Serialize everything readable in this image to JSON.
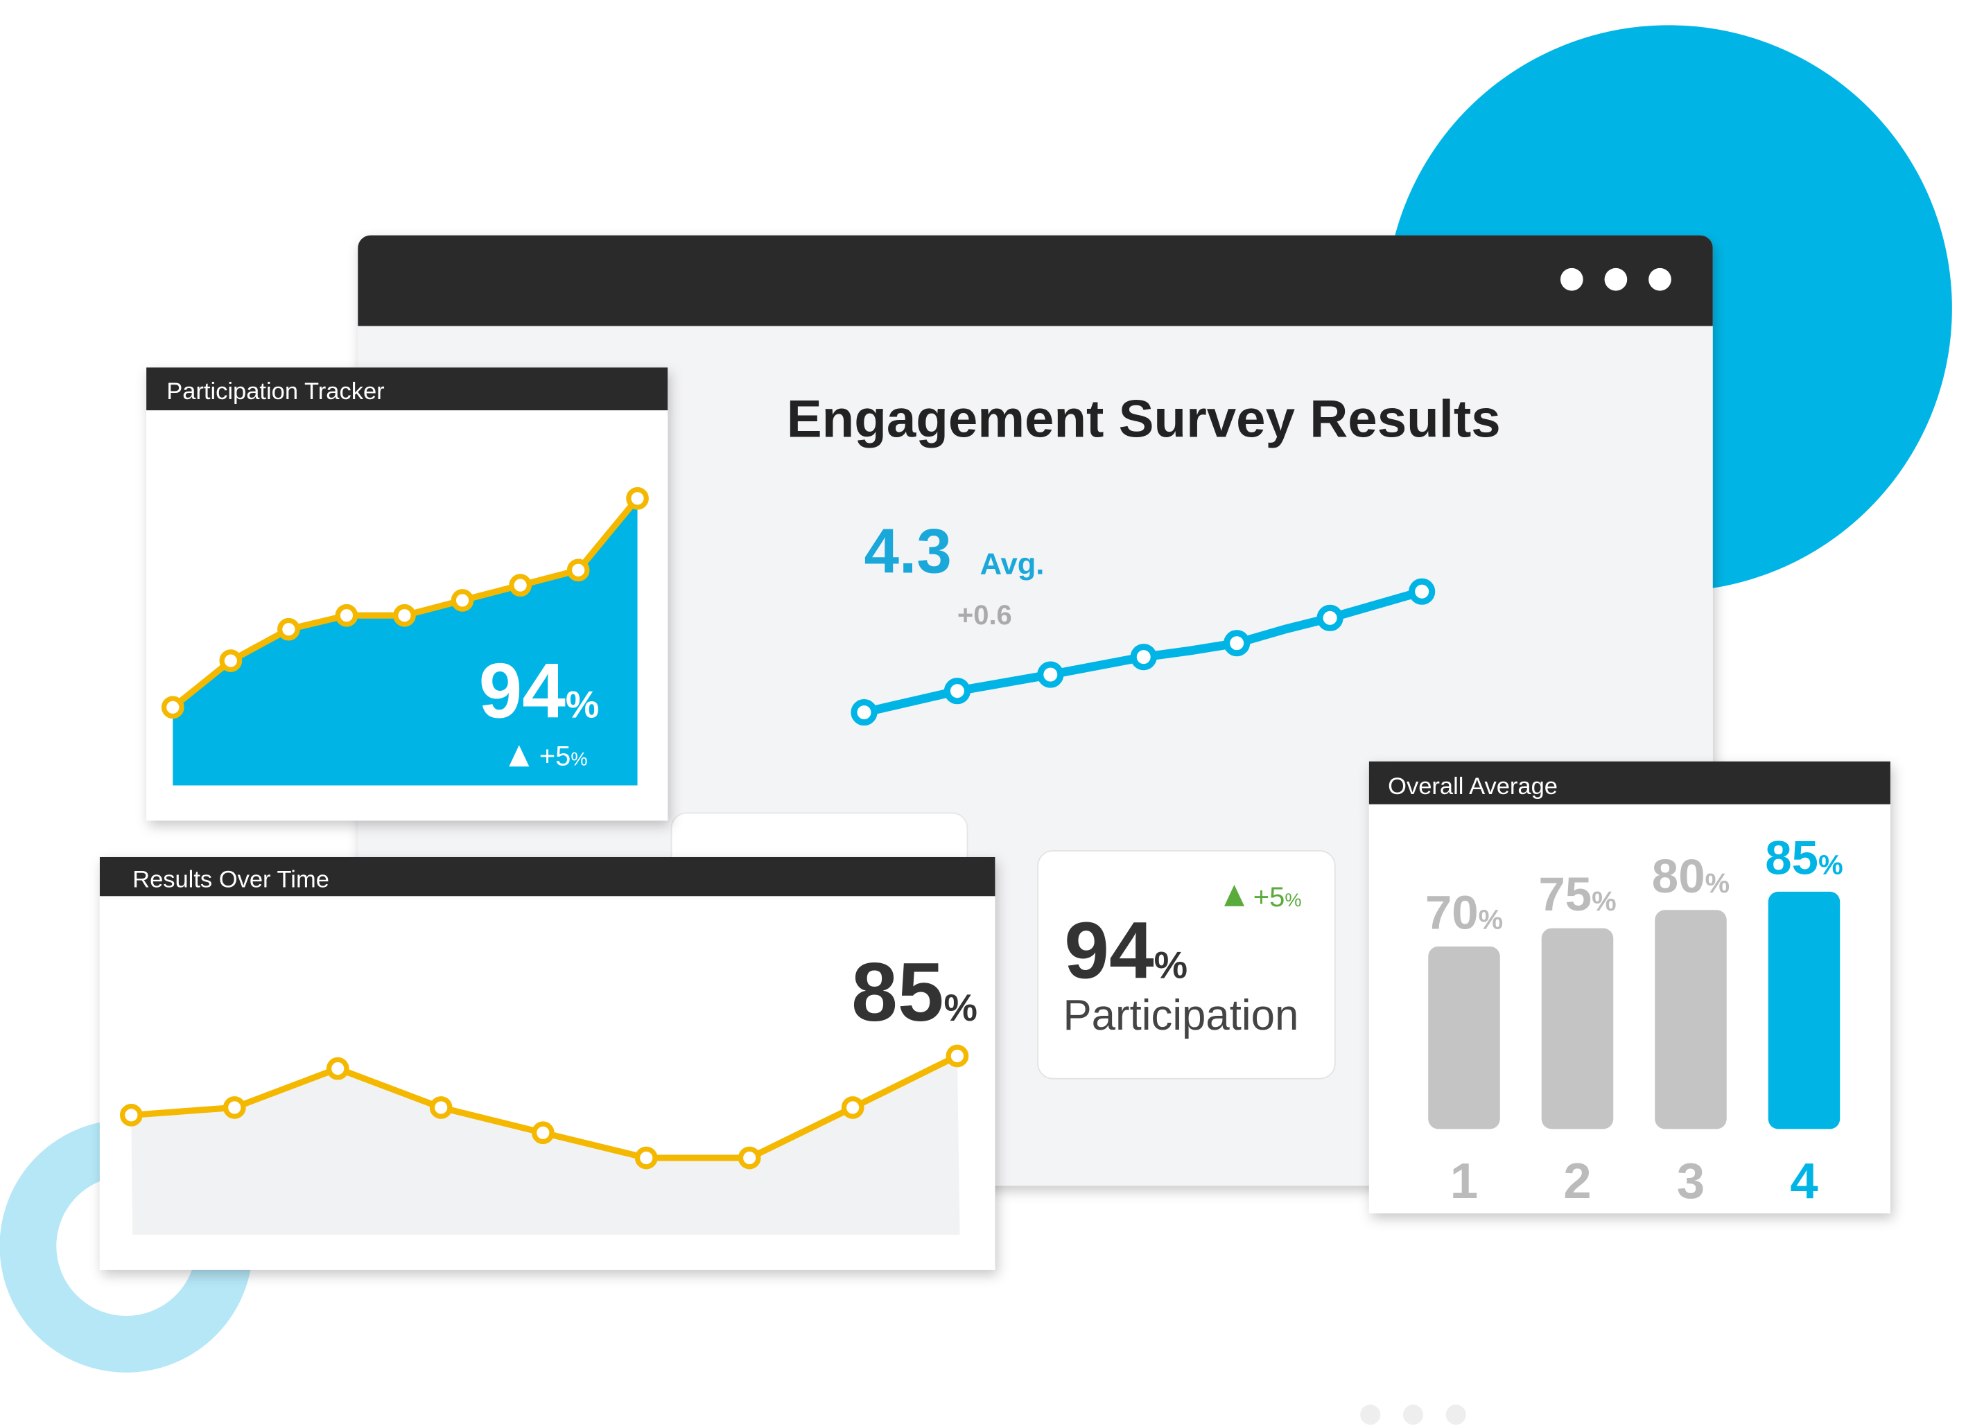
{
  "window": {
    "title": "Engagement Survey Results"
  },
  "average": {
    "value": "4.3",
    "label": "Avg.",
    "change": "+0.6"
  },
  "participation_tracker": {
    "title": "Participation Tracker",
    "value": "94",
    "unit": "%",
    "change": "+5",
    "change_unit": "%"
  },
  "results_over_time": {
    "title": "Results Over Time",
    "value": "85",
    "unit": "%"
  },
  "participation": {
    "value": "94",
    "unit": "%",
    "label": "Participation",
    "change": "+5",
    "change_unit": "%"
  },
  "overall_average": {
    "title": "Overall Average",
    "categories": [
      "1",
      "2",
      "3",
      "4"
    ],
    "values": [
      70,
      75,
      80,
      85
    ],
    "unit": "%"
  }
}
